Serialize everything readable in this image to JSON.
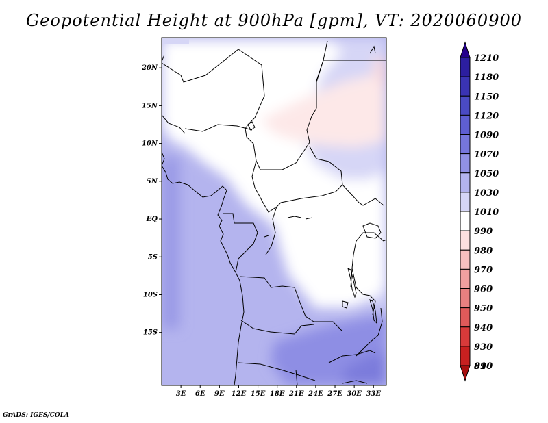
{
  "title": "Geopotential Height at 900hPa [gpm], VT: 2020060900",
  "footer": "GrADS: IGES/COLA",
  "chart_data": {
    "type": "heatmap",
    "title": "Geopotential Height at 900hPa [gpm], VT: 2020060900",
    "variable": "Geopotential Height",
    "level": "900hPa",
    "units": "gpm",
    "valid_time": "2020060900",
    "lon_range": [
      0,
      35
    ],
    "lat_range": [
      -22,
      24
    ],
    "lat_ticks": [
      {
        "value": 20,
        "label": "20N"
      },
      {
        "value": 15,
        "label": "15N"
      },
      {
        "value": 10,
        "label": "10N"
      },
      {
        "value": 5,
        "label": "5N"
      },
      {
        "value": 0,
        "label": "EQ"
      },
      {
        "value": -5,
        "label": "5S"
      },
      {
        "value": -10,
        "label": "10S"
      },
      {
        "value": -15,
        "label": "15S"
      }
    ],
    "lon_ticks": [
      {
        "value": 3,
        "label": "3E"
      },
      {
        "value": 6,
        "label": "6E"
      },
      {
        "value": 9,
        "label": "9E"
      },
      {
        "value": 12,
        "label": "12E"
      },
      {
        "value": 15,
        "label": "15E"
      },
      {
        "value": 18,
        "label": "18E"
      },
      {
        "value": 21,
        "label": "21E"
      },
      {
        "value": 24,
        "label": "24E"
      },
      {
        "value": 27,
        "label": "27E"
      },
      {
        "value": 30,
        "label": "30E"
      },
      {
        "value": 33,
        "label": "33E"
      }
    ],
    "colorbar": {
      "labels": [
        "1210",
        "1180",
        "1150",
        "1120",
        "1090",
        "1070",
        "1050",
        "1030",
        "1010",
        "990",
        "980",
        "970",
        "960",
        "950",
        "940",
        "930",
        "910",
        "890"
      ],
      "colors": [
        "#24008c",
        "#2c1ea0",
        "#3a33b4",
        "#4a4ac4",
        "#5e5ed2",
        "#7676dc",
        "#9191e4",
        "#b4b4ee",
        "#d6d6f6",
        "#ffffff",
        "#fce0e0",
        "#f8c0c0",
        "#f0a0a0",
        "#e88080",
        "#e05a5a",
        "#d83a3a",
        "#c82020",
        "#a81010"
      ]
    },
    "regions": [
      {
        "level": "1050",
        "lon": [
          0,
          35
        ],
        "lat": [
          -22,
          24
        ]
      },
      {
        "level": "1030",
        "lon": [
          0,
          35
        ],
        "lat": [
          -8,
          24
        ]
      },
      {
        "level": "1010",
        "lon": [
          8,
          35
        ],
        "lat": [
          -10,
          24
        ]
      },
      {
        "level": "990",
        "lon": [
          4,
          31
        ],
        "lat": [
          7,
          20
        ]
      },
      {
        "level": "980",
        "lon": [
          16,
          35
        ],
        "lat": [
          13,
          22
        ]
      },
      {
        "level": "1070",
        "lon": [
          16,
          35
        ],
        "lat": [
          -22,
          -15
        ]
      }
    ]
  }
}
